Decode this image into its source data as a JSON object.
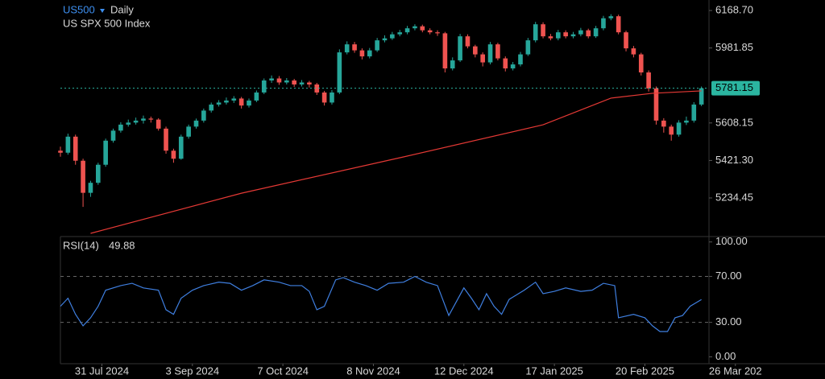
{
  "header": {
    "symbol": "US500",
    "interval": "Daily",
    "name": "US SPX 500 Index"
  },
  "chart_data": [
    {
      "type": "candlestick",
      "up_color": "#26a69a",
      "down_color": "#ef5350",
      "x": [
        0,
        2,
        4,
        6,
        8,
        10,
        12,
        14,
        16,
        18,
        20,
        22,
        24,
        26,
        28,
        30,
        32,
        34,
        36,
        38,
        40,
        42,
        44,
        46,
        48,
        50,
        52,
        54,
        56,
        58,
        60,
        62,
        64,
        66,
        68,
        70,
        72,
        74,
        76,
        78,
        80,
        82,
        84,
        86,
        88,
        90,
        92,
        94,
        96,
        98,
        100,
        102,
        104,
        106,
        108,
        110,
        112,
        114,
        116,
        118,
        120,
        122,
        124,
        126,
        128,
        130,
        132,
        134,
        136,
        138,
        140,
        142,
        144,
        146,
        148,
        150,
        152,
        154,
        156,
        158,
        160,
        162,
        164,
        166,
        168,
        170
      ],
      "open": [
        5470,
        5460,
        5540,
        5420,
        5260,
        5310,
        5400,
        5520,
        5570,
        5600,
        5610,
        5620,
        5630,
        5625,
        5580,
        5470,
        5430,
        5540,
        5590,
        5620,
        5670,
        5700,
        5710,
        5720,
        5730,
        5695,
        5720,
        5760,
        5820,
        5830,
        5810,
        5820,
        5800,
        5810,
        5800,
        5760,
        5710,
        5760,
        5960,
        6000,
        5970,
        5940,
        5970,
        6020,
        6030,
        6050,
        6060,
        6080,
        6090,
        6070,
        6060,
        6055,
        5880,
        5920,
        6040,
        5990,
        5950,
        5910,
        6000,
        5930,
        5880,
        5900,
        5950,
        6020,
        6100,
        6040,
        6030,
        6060,
        6040,
        6050,
        6070,
        6040,
        6080,
        6130,
        6140,
        6060,
        5980,
        5950,
        5860,
        5780,
        5620,
        5590,
        5550,
        5610,
        5620,
        5700
      ],
      "high": [
        5490,
        5555,
        5550,
        5430,
        5320,
        5410,
        5530,
        5580,
        5612,
        5625,
        5635,
        5645,
        5640,
        5632,
        5590,
        5480,
        5550,
        5600,
        5630,
        5680,
        5710,
        5722,
        5735,
        5742,
        5738,
        5730,
        5770,
        5830,
        5845,
        5842,
        5832,
        5828,
        5822,
        5818,
        5808,
        5768,
        5772,
        5975,
        6015,
        6012,
        5980,
        5982,
        6032,
        6045,
        6062,
        6072,
        6092,
        6100,
        6098,
        6080,
        6070,
        6062,
        5935,
        6052,
        6050,
        5998,
        5960,
        6012,
        6008,
        5940,
        5912,
        5962,
        6032,
        6112,
        6110,
        6052,
        6072,
        6070,
        6062,
        6082,
        6078,
        6092,
        6142,
        6150,
        6148,
        6068,
        5992,
        5958,
        5870,
        5790,
        5632,
        5600,
        5622,
        5640,
        5712,
        5790
      ],
      "low": [
        5440,
        5450,
        5400,
        5190,
        5240,
        5300,
        5390,
        5510,
        5560,
        5590,
        5600,
        5605,
        5610,
        5570,
        5455,
        5410,
        5425,
        5530,
        5580,
        5610,
        5660,
        5690,
        5700,
        5708,
        5680,
        5685,
        5712,
        5752,
        5808,
        5798,
        5800,
        5788,
        5790,
        5785,
        5748,
        5695,
        5700,
        5752,
        5950,
        5958,
        5925,
        5930,
        5962,
        6010,
        6022,
        6040,
        6050,
        6070,
        6060,
        6050,
        6042,
        5860,
        5870,
        5912,
        5980,
        5935,
        5890,
        5900,
        5920,
        5865,
        5870,
        5890,
        5942,
        6010,
        6030,
        6020,
        6020,
        6030,
        6030,
        6040,
        6030,
        6032,
        6070,
        6120,
        6050,
        5965,
        5935,
        5845,
        5765,
        5600,
        5560,
        5520,
        5540,
        5598,
        5610,
        5692
      ],
      "close": [
        5460,
        5540,
        5420,
        5260,
        5310,
        5400,
        5520,
        5570,
        5600,
        5610,
        5620,
        5630,
        5625,
        5580,
        5470,
        5430,
        5540,
        5590,
        5620,
        5670,
        5700,
        5710,
        5720,
        5730,
        5695,
        5720,
        5760,
        5820,
        5830,
        5810,
        5820,
        5800,
        5810,
        5800,
        5760,
        5710,
        5760,
        5960,
        6000,
        5970,
        5940,
        5970,
        6020,
        6030,
        6050,
        6060,
        6080,
        6090,
        6070,
        6060,
        6055,
        5880,
        5920,
        6040,
        5990,
        5950,
        5910,
        6000,
        5930,
        5880,
        5900,
        5950,
        6020,
        6100,
        6040,
        6030,
        6060,
        6040,
        6050,
        6070,
        6040,
        6080,
        6130,
        6140,
        6060,
        5980,
        5950,
        5860,
        5780,
        5620,
        5590,
        5550,
        5610,
        5620,
        5700,
        5781.15
      ],
      "overlay": {
        "color": "#e53935",
        "x": [
          8,
          48,
          91,
          128,
          146,
          157,
          170
        ],
        "values": [
          5058,
          5258,
          5439,
          5599,
          5732,
          5756,
          5768
        ]
      },
      "last_price": 5781.15,
      "last_price_color": "#2bb5a0",
      "xlim": [
        0,
        172
      ],
      "ylim": [
        5046,
        6221
      ],
      "yticks": [
        {
          "value": 6168.7,
          "label": "6168.70"
        },
        5981.85,
        5608.15,
        {
          "value": 5421.3,
          "label": "5421.30"
        },
        5234.45
      ],
      "xticks": [
        {
          "value": 11,
          "label": "31 Jul 2024"
        },
        {
          "value": 35,
          "label": "3 Sep 2024"
        },
        {
          "value": 59,
          "label": "7 Oct 2024"
        },
        {
          "value": 83,
          "label": "8 Nov 2024"
        },
        {
          "value": 107,
          "label": "12 Dec 2024"
        },
        {
          "value": 131,
          "label": "17 Jan 2025"
        },
        {
          "value": 155,
          "label": "20 Feb 2025"
        },
        {
          "value": 179,
          "label": "26 Mar 202"
        }
      ]
    },
    {
      "type": "line",
      "title": "RSI(14)",
      "last_value": 49.88,
      "color": "#3f7fe0",
      "x": [
        0,
        2,
        4,
        6,
        8,
        10,
        12,
        16,
        19,
        22,
        26,
        28,
        30,
        32,
        35,
        38,
        42,
        45,
        48,
        51,
        54,
        58,
        61,
        64,
        66,
        68,
        70,
        73,
        75,
        78,
        81,
        84,
        87,
        91,
        94,
        97,
        100,
        103,
        105,
        107,
        109,
        111,
        113,
        115,
        117,
        119,
        123,
        126,
        128,
        131,
        134,
        138,
        141,
        144,
        147,
        148,
        152,
        155,
        157,
        159,
        161,
        163,
        165,
        167,
        170
      ],
      "values": [
        44,
        51,
        37,
        27,
        34,
        44,
        58,
        62,
        64,
        60,
        58,
        41,
        37,
        51,
        58,
        62,
        65,
        64,
        58,
        62,
        67,
        65,
        62,
        62,
        57,
        41,
        44,
        67,
        69,
        65,
        62,
        58,
        64,
        65,
        70,
        65,
        62,
        36,
        48,
        60,
        51,
        41,
        55,
        44,
        37,
        50,
        58,
        65,
        55,
        57,
        60,
        57,
        58,
        64,
        62,
        34,
        37,
        34,
        27,
        22,
        22,
        34,
        36,
        44,
        49.88
      ],
      "xlim": [
        0,
        172
      ],
      "ylim": [
        -6,
        104
      ],
      "yticks": [
        {
          "value": 100,
          "label": "100.00"
        },
        {
          "value": 70,
          "label": "70.00"
        },
        {
          "value": 30,
          "label": "30.00"
        },
        {
          "value": 0,
          "label": "0.00"
        }
      ],
      "levels": [
        70,
        30
      ]
    }
  ]
}
